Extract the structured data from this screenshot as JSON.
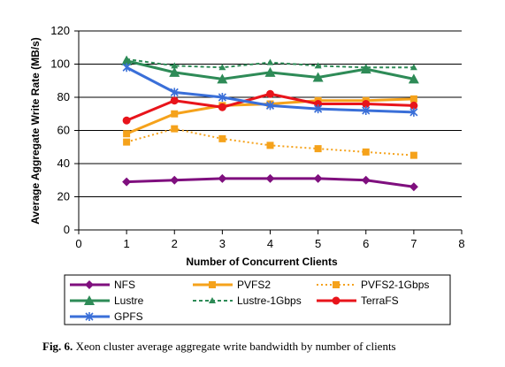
{
  "caption": {
    "label": "Fig. 6.",
    "text": " Xeon cluster average aggregate write bandwidth by number of clients"
  },
  "chart_data": {
    "type": "line",
    "xlabel": "Number of Concurrent Clients",
    "ylabel": "Average Aggregate Write Rate (MB/s)",
    "xlim": [
      0,
      8
    ],
    "ylim": [
      0,
      120
    ],
    "xticks": [
      0,
      1,
      2,
      3,
      4,
      5,
      6,
      7,
      8
    ],
    "yticks": [
      0,
      20,
      40,
      60,
      80,
      100,
      120
    ],
    "grid": "horizontal",
    "legend_position": "bottom",
    "x": [
      1,
      2,
      3,
      4,
      5,
      6,
      7
    ],
    "series": [
      {
        "name": "NFS",
        "values": [
          29,
          30,
          31,
          31,
          31,
          30,
          26
        ],
        "color": "#7f0f7e",
        "marker": "diamond",
        "dash": "solid"
      },
      {
        "name": "PVFS2",
        "values": [
          58,
          70,
          75,
          76,
          78,
          78,
          79
        ],
        "color": "#f5a21b",
        "marker": "square",
        "dash": "solid"
      },
      {
        "name": "PVFS2-1Gbps",
        "values": [
          53,
          61,
          55,
          51,
          49,
          47,
          45
        ],
        "color": "#f5a21b",
        "marker": "square",
        "dash": "dotted"
      },
      {
        "name": "Lustre",
        "values": [
          102,
          95,
          91,
          95,
          92,
          97,
          91
        ],
        "color": "#2e8b57",
        "marker": "triangle",
        "dash": "solid"
      },
      {
        "name": "Lustre-1Gbps",
        "values": [
          103,
          99,
          98,
          101,
          99,
          98,
          98
        ],
        "color": "#2e8b57",
        "marker": "triangle-small",
        "dash": "dashed"
      },
      {
        "name": "TerraFS",
        "values": [
          66,
          78,
          74,
          82,
          76,
          76,
          75
        ],
        "color": "#e8141b",
        "marker": "circle",
        "dash": "solid"
      },
      {
        "name": "GPFS",
        "values": [
          98,
          83,
          80,
          75,
          73,
          72,
          71
        ],
        "color": "#3a6fd8",
        "marker": "star",
        "dash": "solid"
      }
    ]
  }
}
